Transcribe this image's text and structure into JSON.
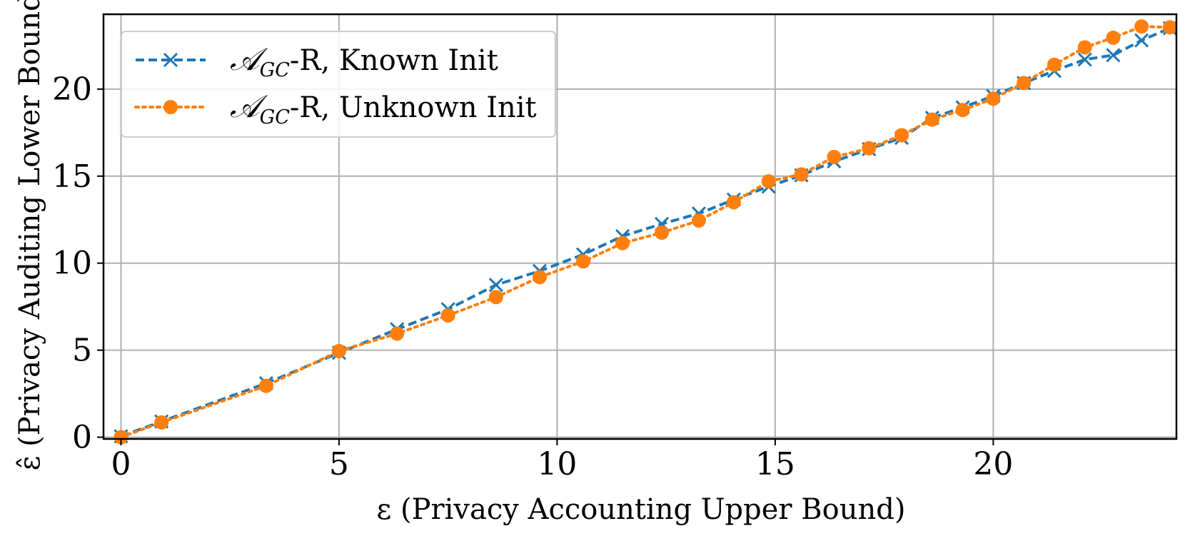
{
  "chart_data": {
    "type": "line",
    "xlabel": "ε (Privacy Accounting Upper Bound)",
    "ylabel": "ε̂ (Privacy Auditing Lower Bound)",
    "xlim": [
      -0.4,
      24.2
    ],
    "ylim": [
      -0.1,
      24.3
    ],
    "xticks": [
      0,
      5,
      10,
      15,
      20
    ],
    "yticks": [
      0,
      5,
      10,
      15,
      20
    ],
    "grid": true,
    "legend_position": "top-left",
    "series": [
      {
        "name": "𝒜GC-R, Known Init",
        "legend_main": "𝒜",
        "legend_sub": "GC",
        "legend_rest": "-R, Known Init",
        "color": "#1f77b4",
        "line_style": "dashed",
        "marker": "x",
        "x": [
          0,
          0.93,
          3.33,
          5.0,
          6.33,
          7.5,
          8.6,
          9.6,
          10.6,
          11.5,
          12.4,
          13.25,
          14.05,
          14.85,
          15.6,
          16.35,
          17.15,
          17.9,
          18.6,
          19.3,
          20.0,
          20.7,
          21.4,
          22.1,
          22.75,
          23.4,
          24.05
        ],
        "y": [
          0.05,
          0.9,
          3.1,
          4.85,
          6.2,
          7.35,
          8.75,
          9.55,
          10.5,
          11.55,
          12.25,
          12.85,
          13.65,
          14.4,
          15.05,
          15.85,
          16.55,
          17.2,
          18.35,
          18.95,
          19.6,
          20.35,
          21.05,
          21.7,
          21.95,
          22.8,
          23.5
        ]
      },
      {
        "name": "𝒜GC-R, Unknown Init",
        "legend_main": "𝒜",
        "legend_sub": "GC",
        "legend_rest": "-R, Unknown Init",
        "color": "#ff7f0e",
        "line_style": "dotted",
        "marker": "circle",
        "x": [
          0,
          0.93,
          3.33,
          5.0,
          6.33,
          7.5,
          8.6,
          9.6,
          10.6,
          11.5,
          12.4,
          13.25,
          14.05,
          14.85,
          15.6,
          16.35,
          17.15,
          17.9,
          18.6,
          19.3,
          20.0,
          20.7,
          21.4,
          22.1,
          22.75,
          23.4,
          24.05
        ],
        "y": [
          0.0,
          0.85,
          2.95,
          4.95,
          5.95,
          7.0,
          8.05,
          9.2,
          10.1,
          11.15,
          11.75,
          12.45,
          13.5,
          14.7,
          15.1,
          16.1,
          16.6,
          17.35,
          18.25,
          18.8,
          19.45,
          20.35,
          21.4,
          22.4,
          22.95,
          23.6,
          23.55
        ]
      }
    ]
  }
}
